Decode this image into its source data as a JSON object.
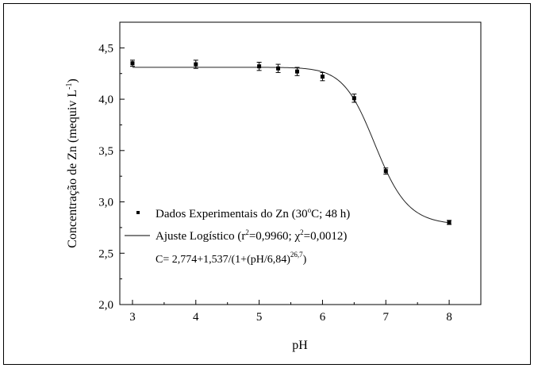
{
  "chart_data": {
    "type": "scatter",
    "xlabel": "pH",
    "ylabel_main": "Concentração de Zn (mequiv L",
    "ylabel_sup": "-1",
    "ylabel_close": ")",
    "xlim": [
      2.8,
      8.5
    ],
    "ylim": [
      2.0,
      4.75
    ],
    "xticks": [
      3,
      4,
      5,
      6,
      7,
      8
    ],
    "xtick_labels": [
      "3",
      "4",
      "5",
      "6",
      "7",
      "8"
    ],
    "yticks": [
      2.0,
      2.5,
      3.0,
      3.5,
      4.0,
      4.5
    ],
    "ytick_labels": [
      "2,0",
      "2,5",
      "3,0",
      "3,5",
      "4,0",
      "4,5"
    ],
    "grid": false,
    "legend_position": "lower-left",
    "series": [
      {
        "name": "Dados Experimentais do Zn (30°C; 48 h)",
        "type": "scatter",
        "x": [
          3.0,
          4.0,
          5.0,
          5.3,
          5.6,
          6.0,
          6.5,
          7.0,
          8.0
        ],
        "y": [
          4.35,
          4.34,
          4.32,
          4.3,
          4.27,
          4.22,
          4.01,
          3.3,
          2.8
        ],
        "yerr": [
          0.03,
          0.04,
          0.04,
          0.04,
          0.04,
          0.04,
          0.04,
          0.03,
          0.02
        ]
      },
      {
        "name": "Ajuste Logístico (r2=0,9960; χ2=0,0012)",
        "type": "line",
        "model": {
          "A2": 2.774,
          "range": 1.537,
          "x0": 6.84,
          "p": 26.7
        },
        "x_from": 3.0,
        "x_to": 8.0
      }
    ],
    "legend": {
      "scatter_label_a": "Dados Experimentais do Zn (30",
      "scatter_label_sup": "o",
      "scatter_label_b": "C; 48 h)",
      "fit_label_a": "Ajuste Logístico (r",
      "fit_label_sup1": "2",
      "fit_label_b": "=0,9960; χ",
      "fit_label_sup2": "2",
      "fit_label_c": "=0,0012)",
      "equation_a": "C= 2,774+1,537/(1+(pH/6,84)",
      "equation_sup": "26,7",
      "equation_b": ")"
    }
  }
}
